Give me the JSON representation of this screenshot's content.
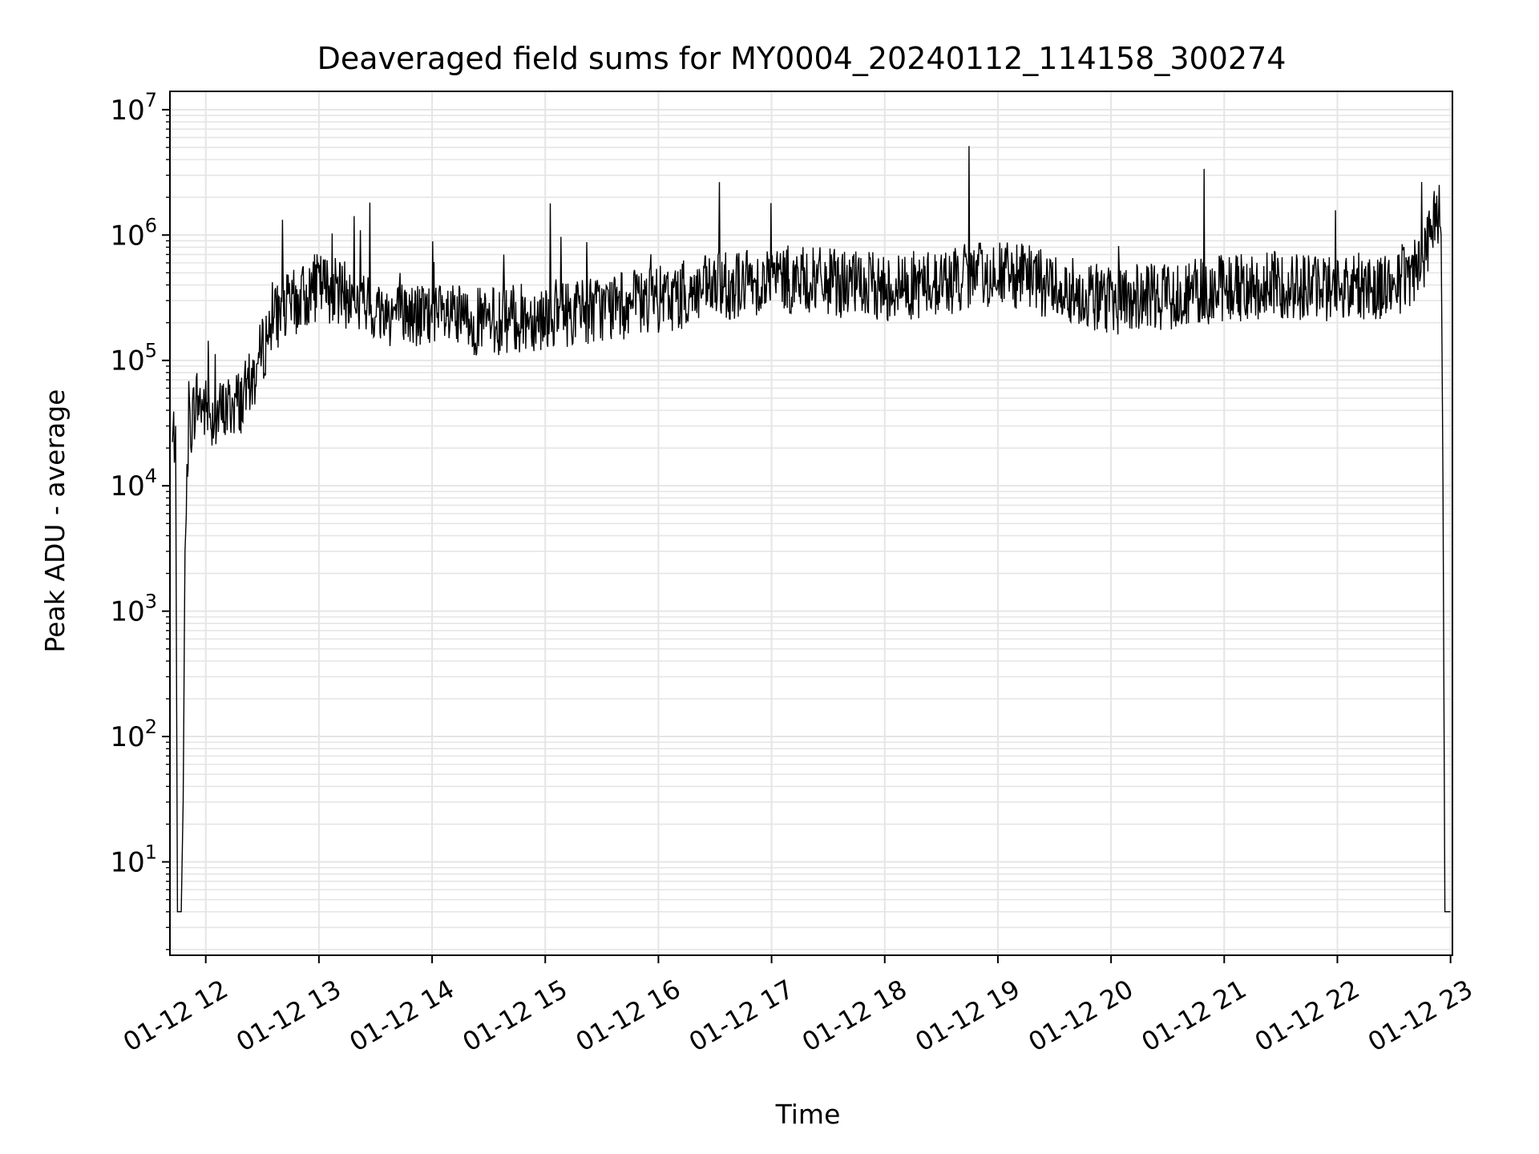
{
  "chart_data": {
    "type": "line",
    "title": "Deaveraged field sums for MY0004_20240112_114158_300274",
    "xlabel": "Time",
    "ylabel": "Peak ADU - average",
    "yscale": "log",
    "ylim": [
      1.8,
      14000000
    ],
    "xlim": [
      "2024-01-12 11:41",
      "2024-01-12 23:01"
    ],
    "grid": true,
    "line_color": "#000000",
    "grid_color": "#e5e5e5",
    "x_tick_labels": [
      "01-12 12",
      "01-12 13",
      "01-12 14",
      "01-12 15",
      "01-12 16",
      "01-12 17",
      "01-12 18",
      "01-12 19",
      "01-12 20",
      "01-12 21",
      "01-12 22",
      "01-12 23"
    ],
    "x_tick_times": [
      "2024-01-12 12:00",
      "2024-01-12 13:00",
      "2024-01-12 14:00",
      "2024-01-12 15:00",
      "2024-01-12 16:00",
      "2024-01-12 17:00",
      "2024-01-12 18:00",
      "2024-01-12 19:00",
      "2024-01-12 20:00",
      "2024-01-12 21:00",
      "2024-01-12 22:00",
      "2024-01-12 23:00"
    ],
    "y_ticks": [
      {
        "value": 10,
        "base": "10",
        "exp": "1"
      },
      {
        "value": 100,
        "base": "10",
        "exp": "2"
      },
      {
        "value": 1000,
        "base": "10",
        "exp": "3"
      },
      {
        "value": 10000,
        "base": "10",
        "exp": "4"
      },
      {
        "value": 100000,
        "base": "10",
        "exp": "5"
      },
      {
        "value": 1000000,
        "base": "10",
        "exp": "6"
      },
      {
        "value": 10000000,
        "base": "10",
        "exp": "7"
      }
    ],
    "series": [
      {
        "x": [
          "2024-01-12 11:42",
          "2024-01-12 11:44",
          "2024-01-12 11:45",
          "2024-01-12 11:47",
          "2024-01-12 11:48",
          "2024-01-12 11:49",
          "2024-01-12 11:50",
          "2024-01-12 11:51",
          "2024-01-12 11:52",
          "2024-01-12 11:55",
          "2024-01-12 12:00",
          "2024-01-12 12:05",
          "2024-01-12 12:10",
          "2024-01-12 12:15",
          "2024-01-12 12:20",
          "2024-01-12 12:25",
          "2024-01-12 12:30",
          "2024-01-12 12:35",
          "2024-01-12 12:40",
          "2024-01-12 12:50",
          "2024-01-12 13:00",
          "2024-01-12 13:10",
          "2024-01-12 13:30",
          "2024-01-12 14:00",
          "2024-01-12 14:30",
          "2024-01-12 15:00",
          "2024-01-12 15:30",
          "2024-01-12 16:00",
          "2024-01-12 16:30",
          "2024-01-12 17:00",
          "2024-01-12 17:30",
          "2024-01-12 18:00",
          "2024-01-12 18:30",
          "2024-01-12 19:00",
          "2024-01-12 19:30",
          "2024-01-12 20:00",
          "2024-01-12 20:30",
          "2024-01-12 21:00",
          "2024-01-12 21:30",
          "2024-01-12 22:00",
          "2024-01-12 22:30",
          "2024-01-12 22:45",
          "2024-01-12 22:50",
          "2024-01-12 22:53",
          "2024-01-12 22:55",
          "2024-01-12 22:56",
          "2024-01-12 22:57",
          "2024-01-12 23:00"
        ],
        "y": [
          20000,
          30000,
          4,
          4,
          30,
          3000,
          8000,
          40000,
          30000,
          50000,
          40000,
          35000,
          40000,
          45000,
          50000,
          70000,
          120000,
          200000,
          250000,
          300000,
          400000,
          350000,
          250000,
          220000,
          200000,
          230000,
          260000,
          300000,
          380000,
          450000,
          420000,
          380000,
          420000,
          500000,
          400000,
          300000,
          330000,
          380000,
          400000,
          380000,
          400000,
          600000,
          1200000,
          1700000,
          1000000,
          10000,
          4,
          4
        ]
      }
    ]
  }
}
